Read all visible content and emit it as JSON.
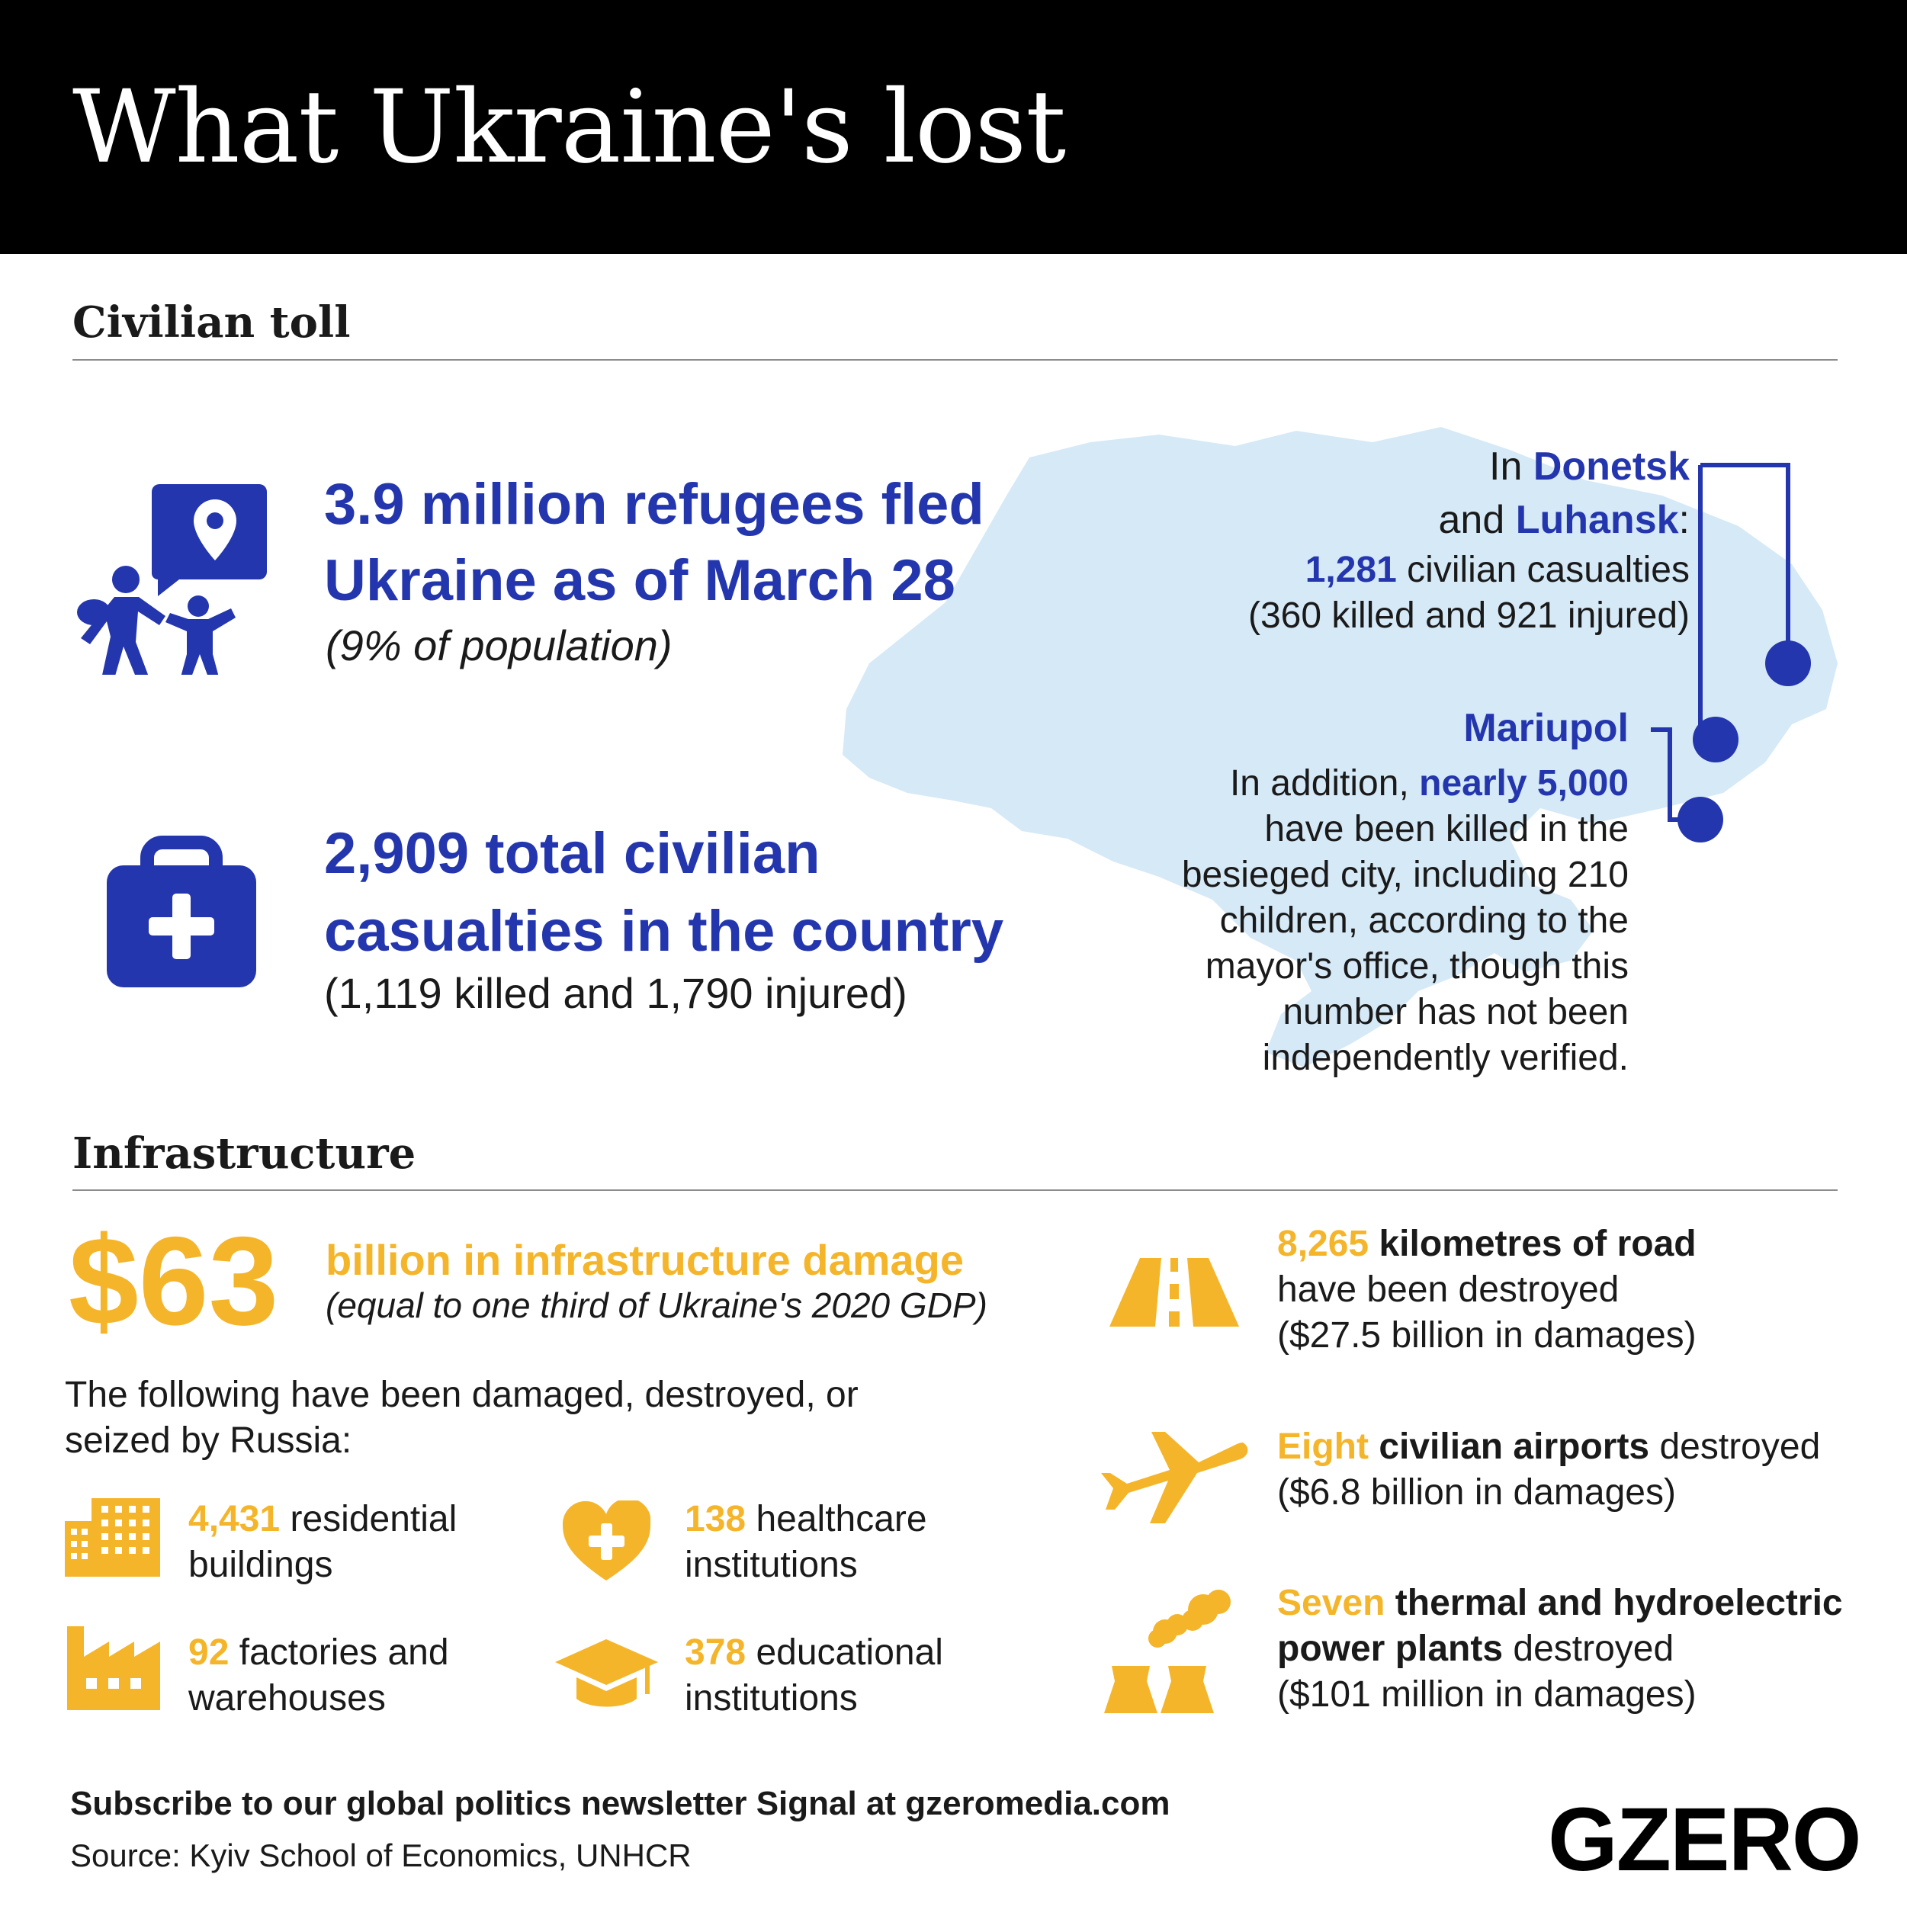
{
  "header": {
    "title": "What Ukraine's lost"
  },
  "colors": {
    "blue": "#2436ad",
    "yellow": "#f5b52a",
    "map": "#d6e9f7",
    "header_bg": "#000000"
  },
  "civilian": {
    "section_title": "Civilian toll",
    "refugees": {
      "icon": "refugees-location-icon",
      "line1": "3.9 million refugees fled",
      "line2": "Ukraine as of March 28",
      "note": "(9% of population)"
    },
    "casualties": {
      "icon": "medical-kit-icon",
      "line1": "2,909 total civilian",
      "line2": "casualties in the country",
      "note": "(1,119 killed and 1,790 injured)"
    },
    "donetsk": {
      "in": "In",
      "donetsk": "Donetsk",
      "and": "and",
      "luhansk": "Luhansk",
      "colon": ":",
      "count": "1,281",
      "count_label": "civilian casualties",
      "detail": "(360 killed and 921 injured)"
    },
    "mariupol": {
      "title": "Mariupol",
      "lead": "In addition,",
      "highlight": "nearly 5,000",
      "line2": "have been killed in the",
      "line3": "besieged city, including 210",
      "line4": "children, according to the",
      "line5": "mayor's office, though this",
      "line6": "number has not been",
      "line7": "independently verified."
    }
  },
  "infrastructure": {
    "section_title": "Infrastructure",
    "damage_value": "$63",
    "damage_label": "billion in infrastructure damage",
    "damage_note": "(equal to one third of Ukraine's 2020 GDP)",
    "intro_line1": "The following have been damaged, destroyed, or",
    "intro_line2": "seized by Russia:",
    "items": [
      {
        "icon": "buildings-icon",
        "value": "4,431",
        "label1": "residential",
        "label2": "buildings"
      },
      {
        "icon": "heart-cross-icon",
        "value": "138",
        "label1": "healthcare",
        "label2": "institutions"
      },
      {
        "icon": "factory-icon",
        "value": "92",
        "label1": "factories and",
        "label2": "warehouses"
      },
      {
        "icon": "graduation-cap-icon",
        "value": "378",
        "label1": "educational",
        "label2": "institutions"
      }
    ],
    "road": {
      "icon": "road-icon",
      "value": "8,265",
      "label": "kilometres of road",
      "line2": "have been destroyed",
      "line3": "($27.5 billion in damages)"
    },
    "airports": {
      "icon": "airplane-icon",
      "value": "Eight",
      "label": "civilian airports",
      "tail": "destroyed",
      "line2": "($6.8 billion in damages)"
    },
    "plants": {
      "icon": "power-plant-icon",
      "value": "Seven",
      "label": "thermal and hydroelectric",
      "label2": "power plants",
      "tail": "destroyed",
      "line3": "($101 million in damages)"
    }
  },
  "footer": {
    "subscribe": "Subscribe to our global politics newsletter Signal at gzeromedia.com",
    "source": "Source: Kyiv School of Economics, UNHCR",
    "logo": "GZERO"
  }
}
